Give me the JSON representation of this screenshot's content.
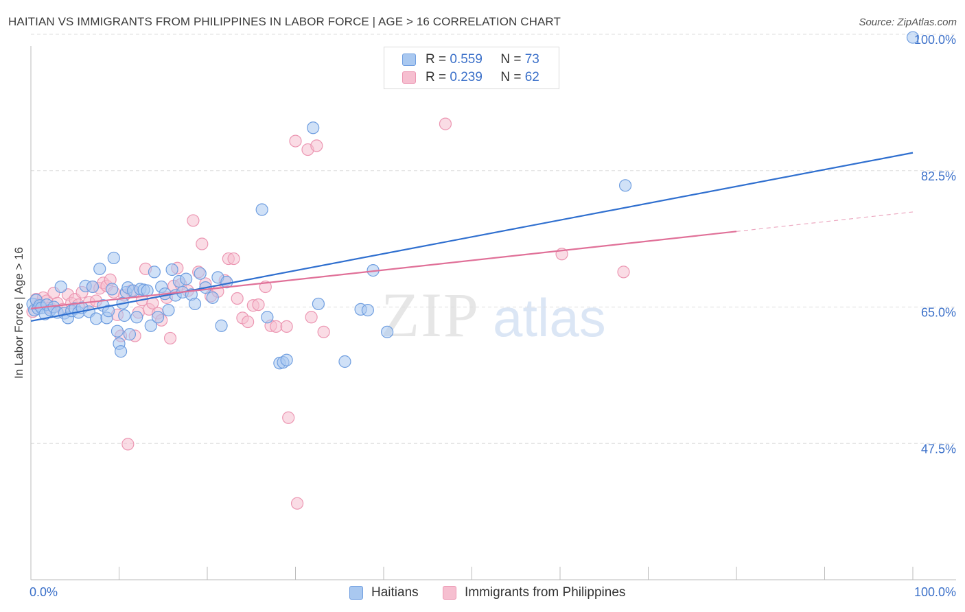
{
  "header": {
    "title": "HAITIAN VS IMMIGRANTS FROM PHILIPPINES IN LABOR FORCE | AGE > 16 CORRELATION CHART",
    "source": "Source: ZipAtlas.com"
  },
  "watermark": {
    "zip": "ZIP",
    "atlas": "atlas"
  },
  "legend": {
    "rows": [
      {
        "r_label": "R =",
        "r_value": "0.559",
        "n_label": "N =",
        "n_value": "73"
      },
      {
        "r_label": "R =",
        "r_value": "0.239",
        "n_label": "N =",
        "n_value": "62"
      }
    ]
  },
  "bottom_legend": [
    "Haitians",
    "Immigrants from Philippines"
  ],
  "colors": {
    "blue_fill": "#a9c8f0",
    "blue_stroke": "#6f9ee0",
    "blue_line": "#2f6fcf",
    "pink_fill": "#f6bfd0",
    "pink_stroke": "#ec96b2",
    "pink_line": "#e07098",
    "axis_label": "#3b70c9",
    "grid": "#dddddd"
  },
  "chart_data": {
    "type": "scatter",
    "title": "HAITIAN VS IMMIGRANTS FROM PHILIPPINES IN LABOR FORCE | AGE > 16 CORRELATION CHART",
    "xlabel": "",
    "ylabel": "In Labor Force | Age > 16",
    "xlim": [
      0,
      100
    ],
    "ylim": [
      30,
      100
    ],
    "x_tick_labels": [
      "0.0%",
      "100.0%"
    ],
    "y_ticks": [
      47.5,
      65.0,
      82.5,
      100.0
    ],
    "y_tick_labels": [
      "47.5%",
      "65.0%",
      "82.5%",
      "100.0%"
    ],
    "grid": true,
    "legend_position": "top-center",
    "series": [
      {
        "name": "Haitians",
        "r": 0.559,
        "n": 73,
        "trend": {
          "x": [
            0,
            100
          ],
          "y": [
            63.2,
            84.8
          ]
        },
        "points": [
          [
            0.2,
            65.4
          ],
          [
            0.4,
            64.6
          ],
          [
            0.6,
            65.9
          ],
          [
            0.8,
            64.8
          ],
          [
            1.0,
            65.2
          ],
          [
            1.2,
            64.9
          ],
          [
            1.6,
            64.1
          ],
          [
            1.8,
            65.3
          ],
          [
            2.2,
            64.6
          ],
          [
            2.6,
            65.0
          ],
          [
            3.0,
            64.3
          ],
          [
            3.4,
            67.6
          ],
          [
            3.8,
            64.2
          ],
          [
            4.2,
            63.6
          ],
          [
            4.6,
            64.5
          ],
          [
            5.0,
            64.8
          ],
          [
            5.4,
            64.3
          ],
          [
            5.8,
            64.9
          ],
          [
            6.2,
            67.7
          ],
          [
            6.6,
            64.4
          ],
          [
            7.0,
            67.6
          ],
          [
            7.4,
            63.5
          ],
          [
            7.8,
            69.9
          ],
          [
            8.2,
            65.2
          ],
          [
            8.6,
            63.6
          ],
          [
            8.8,
            64.5
          ],
          [
            9.2,
            67.3
          ],
          [
            9.4,
            71.3
          ],
          [
            9.8,
            61.9
          ],
          [
            10.0,
            60.3
          ],
          [
            10.2,
            59.3
          ],
          [
            10.4,
            65.5
          ],
          [
            10.6,
            63.9
          ],
          [
            10.8,
            66.9
          ],
          [
            11.0,
            67.5
          ],
          [
            11.2,
            61.5
          ],
          [
            11.6,
            67.1
          ],
          [
            12.0,
            63.7
          ],
          [
            12.4,
            67.3
          ],
          [
            12.8,
            67.2
          ],
          [
            13.2,
            67.1
          ],
          [
            13.6,
            62.6
          ],
          [
            14.0,
            69.5
          ],
          [
            14.4,
            63.7
          ],
          [
            14.8,
            67.6
          ],
          [
            15.2,
            66.7
          ],
          [
            15.6,
            64.6
          ],
          [
            16.0,
            69.8
          ],
          [
            16.4,
            66.5
          ],
          [
            16.8,
            68.3
          ],
          [
            17.2,
            66.9
          ],
          [
            17.6,
            68.6
          ],
          [
            18.2,
            66.6
          ],
          [
            18.6,
            65.4
          ],
          [
            19.2,
            69.3
          ],
          [
            19.8,
            67.5
          ],
          [
            20.6,
            66.2
          ],
          [
            21.2,
            68.8
          ],
          [
            21.6,
            62.6
          ],
          [
            22.2,
            68.2
          ],
          [
            26.2,
            77.5
          ],
          [
            26.8,
            63.7
          ],
          [
            28.2,
            57.8
          ],
          [
            28.6,
            57.9
          ],
          [
            29.0,
            58.2
          ],
          [
            32.0,
            88.0
          ],
          [
            32.6,
            65.4
          ],
          [
            35.6,
            58.0
          ],
          [
            37.4,
            64.7
          ],
          [
            38.2,
            64.6
          ],
          [
            38.8,
            69.7
          ],
          [
            40.4,
            61.8
          ],
          [
            67.4,
            80.6
          ],
          [
            100.0,
            99.6
          ]
        ]
      },
      {
        "name": "Immigrants from Philippines",
        "r": 0.239,
        "n": 62,
        "trend": {
          "x": [
            0,
            80
          ],
          "y": [
            64.8,
            74.7
          ]
        },
        "trend_dashed": {
          "x": [
            80,
            100
          ],
          "y": [
            74.7,
            77.2
          ]
        },
        "points": [
          [
            0.2,
            64.4
          ],
          [
            0.6,
            66.0
          ],
          [
            1.0,
            65.4
          ],
          [
            1.4,
            66.2
          ],
          [
            1.8,
            65.8
          ],
          [
            2.2,
            64.9
          ],
          [
            2.6,
            66.8
          ],
          [
            3.0,
            65.5
          ],
          [
            3.6,
            64.7
          ],
          [
            4.2,
            66.6
          ],
          [
            4.6,
            65.5
          ],
          [
            5.0,
            66.0
          ],
          [
            5.4,
            65.3
          ],
          [
            5.8,
            66.9
          ],
          [
            6.6,
            65.6
          ],
          [
            7.0,
            67.6
          ],
          [
            7.4,
            65.8
          ],
          [
            7.8,
            67.4
          ],
          [
            8.2,
            68.1
          ],
          [
            8.6,
            67.7
          ],
          [
            9.0,
            68.5
          ],
          [
            9.4,
            66.9
          ],
          [
            9.8,
            64.0
          ],
          [
            10.2,
            61.3
          ],
          [
            10.6,
            66.5
          ],
          [
            11.0,
            47.4
          ],
          [
            11.4,
            67.1
          ],
          [
            11.8,
            61.3
          ],
          [
            12.2,
            64.3
          ],
          [
            12.6,
            65.9
          ],
          [
            13.0,
            69.9
          ],
          [
            13.4,
            64.7
          ],
          [
            13.8,
            65.5
          ],
          [
            14.4,
            64.2
          ],
          [
            14.8,
            63.3
          ],
          [
            15.4,
            66.2
          ],
          [
            15.8,
            61.0
          ],
          [
            16.2,
            67.7
          ],
          [
            16.6,
            70.0
          ],
          [
            17.0,
            67.9
          ],
          [
            17.8,
            67.1
          ],
          [
            18.4,
            76.1
          ],
          [
            19.0,
            69.5
          ],
          [
            19.4,
            73.1
          ],
          [
            19.8,
            68.0
          ],
          [
            20.4,
            66.4
          ],
          [
            21.2,
            67.0
          ],
          [
            22.0,
            68.4
          ],
          [
            22.4,
            71.2
          ],
          [
            23.0,
            71.2
          ],
          [
            23.4,
            66.1
          ],
          [
            24.0,
            63.6
          ],
          [
            24.6,
            63.1
          ],
          [
            25.2,
            65.2
          ],
          [
            25.8,
            65.3
          ],
          [
            26.6,
            67.6
          ],
          [
            27.2,
            62.6
          ],
          [
            27.8,
            62.5
          ],
          [
            29.0,
            62.5
          ],
          [
            29.2,
            50.8
          ],
          [
            30.0,
            86.3
          ],
          [
            30.2,
            39.8
          ],
          [
            31.4,
            85.2
          ],
          [
            31.8,
            63.7
          ],
          [
            32.4,
            85.7
          ],
          [
            33.2,
            61.8
          ],
          [
            47.0,
            88.5
          ],
          [
            60.2,
            71.8
          ],
          [
            67.2,
            69.5
          ]
        ]
      }
    ]
  }
}
